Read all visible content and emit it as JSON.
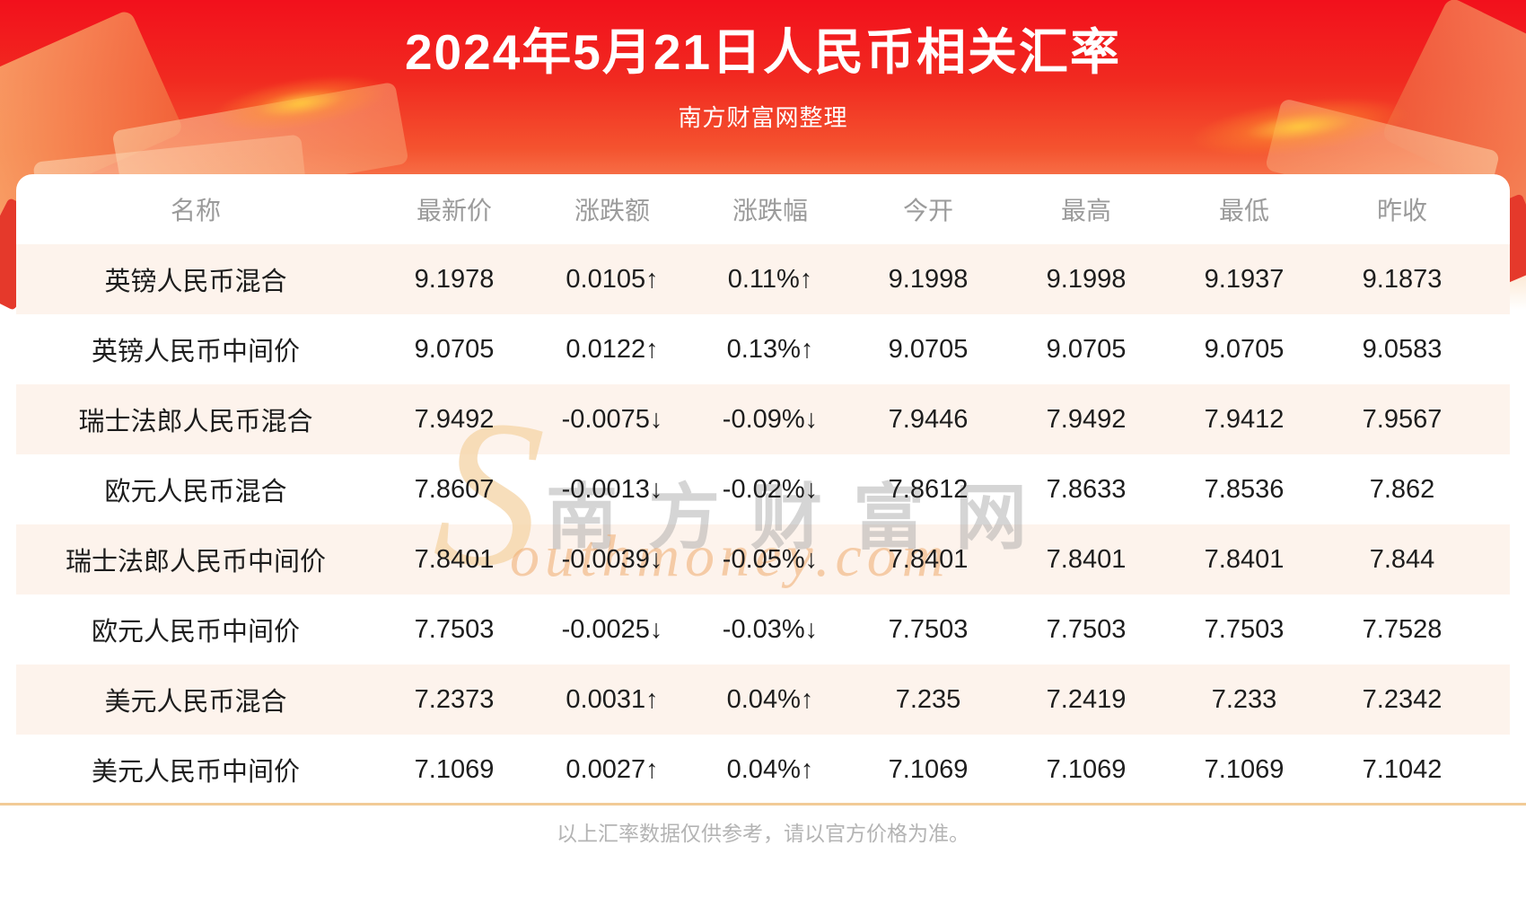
{
  "header": {
    "title": "2024年5月21日人民币相关汇率",
    "subtitle": "南方财富网整理"
  },
  "table": {
    "columns": [
      "名称",
      "最新价",
      "涨跌额",
      "涨跌幅",
      "今开",
      "最高",
      "最低",
      "昨收"
    ],
    "rows": [
      {
        "trend": "up",
        "cells": [
          "英镑人民币混合",
          "9.1978",
          "0.0105↑",
          "0.11%↑",
          "9.1998",
          "9.1998",
          "9.1937",
          "9.1873"
        ]
      },
      {
        "trend": "up",
        "cells": [
          "英镑人民币中间价",
          "9.0705",
          "0.0122↑",
          "0.13%↑",
          "9.0705",
          "9.0705",
          "9.0705",
          "9.0583"
        ]
      },
      {
        "trend": "down",
        "cells": [
          "瑞士法郎人民币混合",
          "7.9492",
          "-0.0075↓",
          "-0.09%↓",
          "7.9446",
          "7.9492",
          "7.9412",
          "7.9567"
        ]
      },
      {
        "trend": "down",
        "cells": [
          "欧元人民币混合",
          "7.8607",
          "-0.0013↓",
          "-0.02%↓",
          "7.8612",
          "7.8633",
          "7.8536",
          "7.862"
        ]
      },
      {
        "trend": "down",
        "cells": [
          "瑞士法郎人民币中间价",
          "7.8401",
          "-0.0039↓",
          "-0.05%↓",
          "7.8401",
          "7.8401",
          "7.8401",
          "7.844"
        ]
      },
      {
        "trend": "down",
        "cells": [
          "欧元人民币中间价",
          "7.7503",
          "-0.0025↓",
          "-0.03%↓",
          "7.7503",
          "7.7503",
          "7.7503",
          "7.7528"
        ]
      },
      {
        "trend": "up",
        "cells": [
          "美元人民币混合",
          "7.2373",
          "0.0031↑",
          "0.04%↑",
          "7.235",
          "7.2419",
          "7.233",
          "7.2342"
        ]
      },
      {
        "trend": "up",
        "cells": [
          "美元人民币中间价",
          "7.1069",
          "0.0027↑",
          "0.04%↑",
          "7.1069",
          "7.1069",
          "7.1069",
          "7.1042"
        ]
      }
    ]
  },
  "watermark": {
    "swoosh": "S",
    "cn": "南方财富网",
    "en": "outhmoney.com"
  },
  "footer": {
    "disclaimer": "以上汇率数据仅供参考，请以官方价格为准。"
  },
  "colors": {
    "up_red": "#e8251f",
    "down_green": "#0b8f0e",
    "stripe_bg": "#fdf3ec",
    "banner_red": "#f2101c",
    "divider_tan": "#f2cb96"
  }
}
